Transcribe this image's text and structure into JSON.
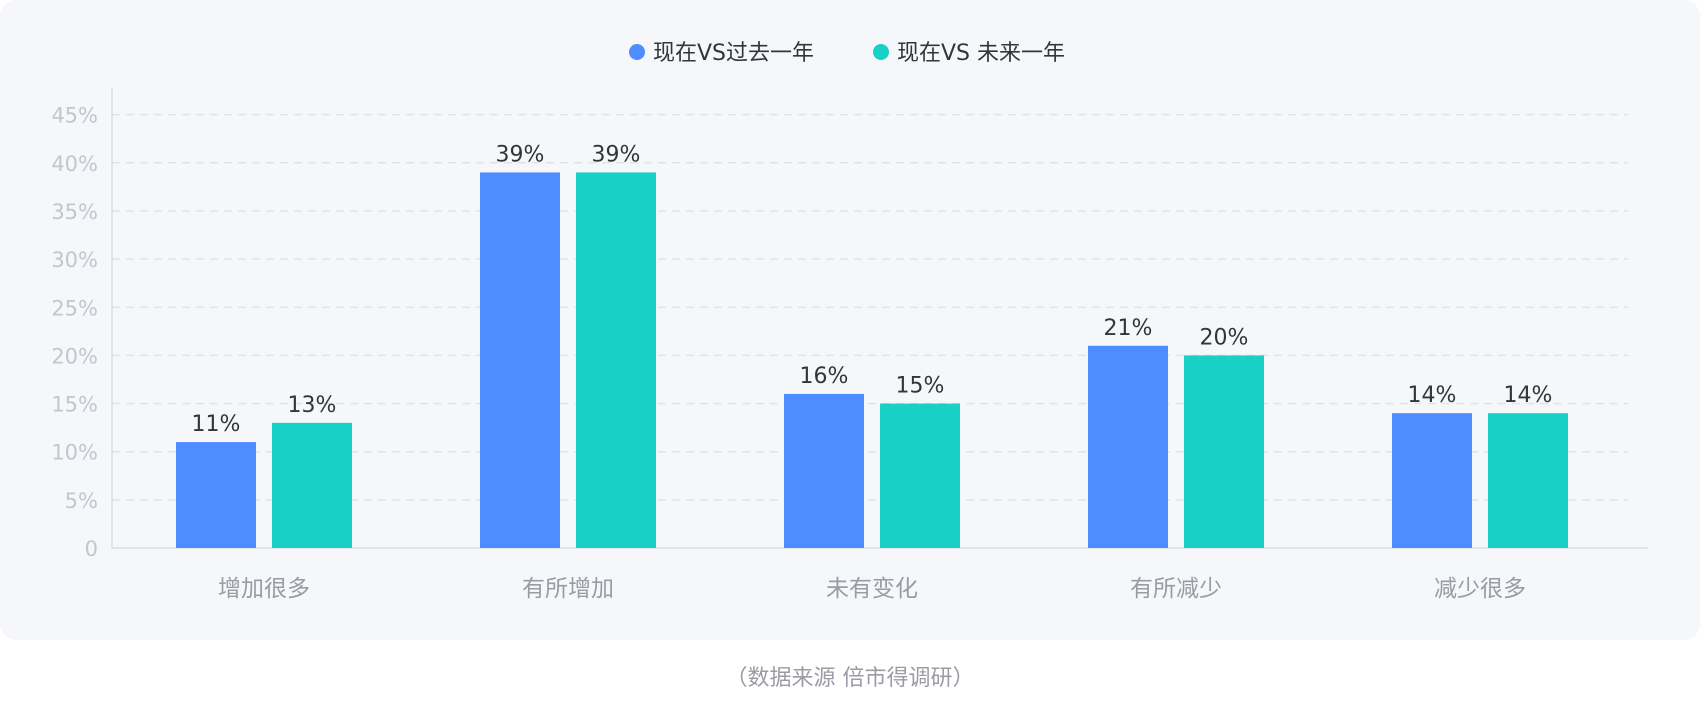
{
  "chart_data": {
    "type": "bar",
    "categories": [
      "增加很多",
      "有所增加",
      "未有变化",
      "有所减少",
      "减少很多"
    ],
    "series": [
      {
        "name": "现在VS过去一年",
        "values": [
          11,
          39,
          16,
          21,
          14
        ],
        "color": "#4f8dff"
      },
      {
        "name": "现在VS 未来一年",
        "values": [
          13,
          39,
          15,
          20,
          14
        ],
        "color": "#19d0c6"
      }
    ],
    "value_labels": [
      [
        "11%",
        "39%",
        "16%",
        "21%",
        "14%"
      ],
      [
        "13%",
        "39%",
        "15%",
        "20%",
        "14%"
      ]
    ],
    "y_ticks": [
      "0",
      "5%",
      "10%",
      "15%",
      "20%",
      "25%",
      "30%",
      "35%",
      "40%",
      "45%"
    ],
    "ylim": [
      0,
      45
    ],
    "grid": true,
    "legend_position": "top-center"
  },
  "source": "（数据来源  倍市得调研）"
}
